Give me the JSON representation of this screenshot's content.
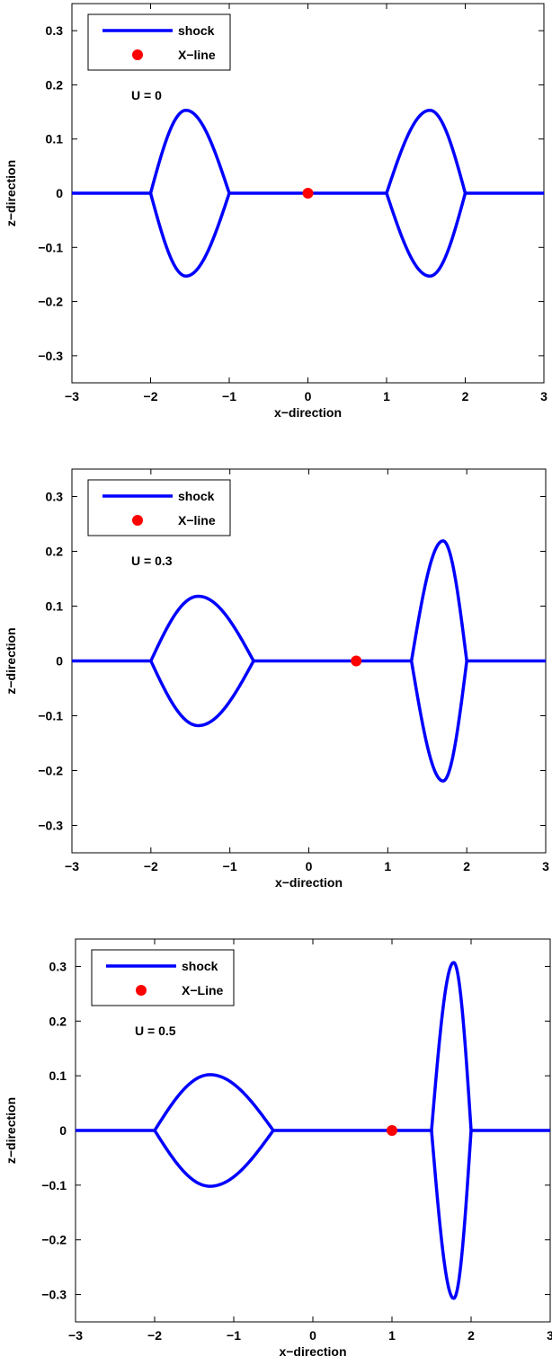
{
  "colors": {
    "shock": "#0000ff",
    "xline": "#ff0000",
    "axes": "#000000",
    "background": "#ffffff"
  },
  "chart_data": [
    {
      "type": "line",
      "xlabel": "x−direction",
      "ylabel": "z−direction",
      "xlim": [
        -3,
        3
      ],
      "ylim": [
        -0.35,
        0.35
      ],
      "xticks": [
        -3,
        -2,
        -1,
        0,
        1,
        2,
        3
      ],
      "xtick_labels": [
        "−3",
        "−2",
        "−1",
        "0",
        "1",
        "2",
        "3"
      ],
      "yticks": [
        -0.3,
        -0.2,
        -0.1,
        0,
        0.1,
        0.2,
        0.3
      ],
      "ytick_labels": [
        "−0.3",
        "−0.2",
        "−0.1",
        "0",
        "0.1",
        "0.2",
        "0.3"
      ],
      "grid": false,
      "legend_position": "top-left",
      "annotation": "U = 0",
      "series": [
        {
          "name": "shock",
          "kind": "line",
          "segments": [
            [
              -3,
              -2
            ],
            [
              -1,
              1
            ],
            [
              2,
              3
            ]
          ],
          "lenses": [
            {
              "x_from": -2,
              "x_to": -1,
              "peak_x": -1.55,
              "height": 0.153
            },
            {
              "x_from": 1,
              "x_to": 2,
              "peak_x": 1.55,
              "height": 0.153
            }
          ]
        },
        {
          "name": "X−line",
          "kind": "point",
          "x": 0,
          "y": 0
        }
      ]
    },
    {
      "type": "line",
      "xlabel": "x−direction",
      "ylabel": "z−direction",
      "xlim": [
        -3,
        3
      ],
      "ylim": [
        -0.35,
        0.35
      ],
      "xticks": [
        -3,
        -2,
        -1,
        0,
        1,
        2,
        3
      ],
      "xtick_labels": [
        "−3",
        "−2",
        "−1",
        "0",
        "1",
        "2",
        "3"
      ],
      "yticks": [
        -0.3,
        -0.2,
        -0.1,
        0,
        0.1,
        0.2,
        0.3
      ],
      "ytick_labels": [
        "−0.3",
        "−0.2",
        "−0.1",
        "0",
        "0.1",
        "0.2",
        "0.3"
      ],
      "grid": false,
      "legend_position": "top-left",
      "annotation": "U = 0.3",
      "series": [
        {
          "name": "shock",
          "kind": "line",
          "segments": [
            [
              -3,
              -2
            ],
            [
              -0.7,
              1.3
            ],
            [
              2,
              3
            ]
          ],
          "lenses": [
            {
              "x_from": -2,
              "x_to": -0.7,
              "peak_x": -1.4,
              "height": 0.118
            },
            {
              "x_from": 1.3,
              "x_to": 2,
              "peak_x": 1.7,
              "height": 0.219
            }
          ]
        },
        {
          "name": "X−line",
          "kind": "point",
          "x": 0.6,
          "y": 0
        }
      ]
    },
    {
      "type": "line",
      "xlabel": "x−direction",
      "ylabel": "z−direction",
      "xlim": [
        -3,
        3
      ],
      "ylim": [
        -0.35,
        0.35
      ],
      "xticks": [
        -3,
        -2,
        -1,
        0,
        1,
        2,
        3
      ],
      "xtick_labels": [
        "−3",
        "−2",
        "−1",
        "0",
        "1",
        "2",
        "3"
      ],
      "yticks": [
        -0.3,
        -0.2,
        -0.1,
        0,
        0.1,
        0.2,
        0.3
      ],
      "ytick_labels": [
        "−0.3",
        "−0.2",
        "−0.1",
        "0",
        "0.1",
        "0.2",
        "0.3"
      ],
      "grid": false,
      "legend_position": "top-left",
      "annotation": "U = 0.5",
      "series": [
        {
          "name": "shock",
          "kind": "line",
          "segments": [
            [
              -3,
              -2
            ],
            [
              -0.5,
              1.5
            ],
            [
              2,
              3
            ]
          ],
          "lenses": [
            {
              "x_from": -2,
              "x_to": -0.5,
              "peak_x": -1.3,
              "height": 0.102
            },
            {
              "x_from": 1.5,
              "x_to": 2,
              "peak_x": 1.78,
              "height": 0.307
            }
          ]
        },
        {
          "name": "X−Line",
          "kind": "point",
          "x": 1,
          "y": 0
        }
      ]
    }
  ]
}
